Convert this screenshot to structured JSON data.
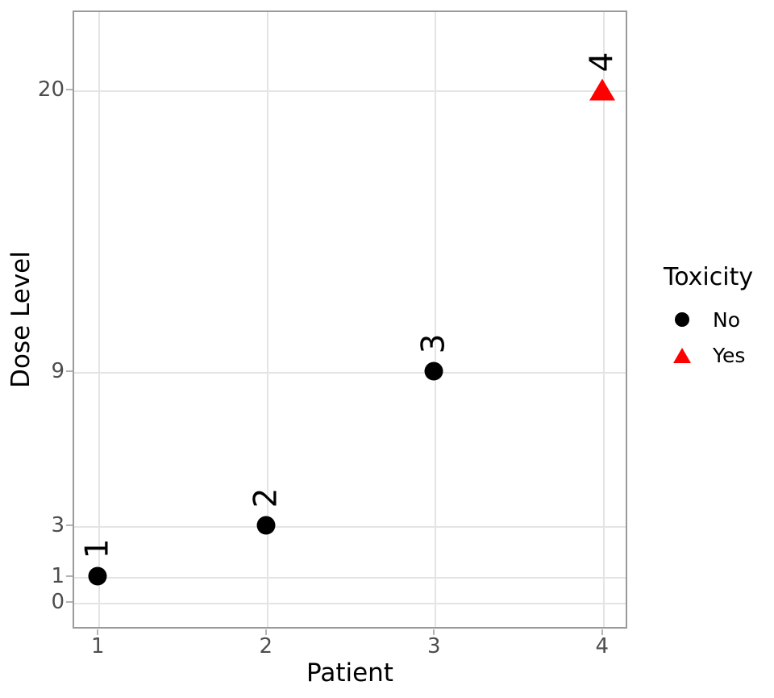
{
  "chart_data": {
    "type": "scatter",
    "xlabel": "Patient",
    "ylabel": "Dose Level",
    "x_ticks": [
      1,
      2,
      3,
      4
    ],
    "y_ticks": [
      0,
      1,
      3,
      9,
      20
    ],
    "xlim": [
      0.85,
      4.15
    ],
    "ylim": [
      -1.05,
      23.1
    ],
    "grid": "major-only",
    "background": "#ffffff",
    "points": [
      {
        "patient": 1,
        "dose": 1,
        "label": "1",
        "toxicity": "No",
        "marker": "circle",
        "color": "#000000"
      },
      {
        "patient": 2,
        "dose": 3,
        "label": "2",
        "toxicity": "No",
        "marker": "circle",
        "color": "#000000"
      },
      {
        "patient": 3,
        "dose": 9,
        "label": "3",
        "toxicity": "No",
        "marker": "circle",
        "color": "#000000"
      },
      {
        "patient": 4,
        "dose": 20,
        "label": "4",
        "toxicity": "Yes",
        "marker": "triangle",
        "color": "#ff0000"
      }
    ],
    "legend": {
      "title": "Toxicity",
      "position": "right",
      "entries": [
        {
          "label": "No",
          "marker": "circle",
          "color": "#000000"
        },
        {
          "label": "Yes",
          "marker": "triangle",
          "color": "#ff0000"
        }
      ]
    },
    "colors": {
      "gridline": "#e4e4e4",
      "panel_border": "#9a9a9a",
      "tick_mark": "#b3b3b3",
      "tick_label": "#4d4d4d",
      "toxicity_no": "#000000",
      "toxicity_yes": "#ff0000"
    }
  }
}
